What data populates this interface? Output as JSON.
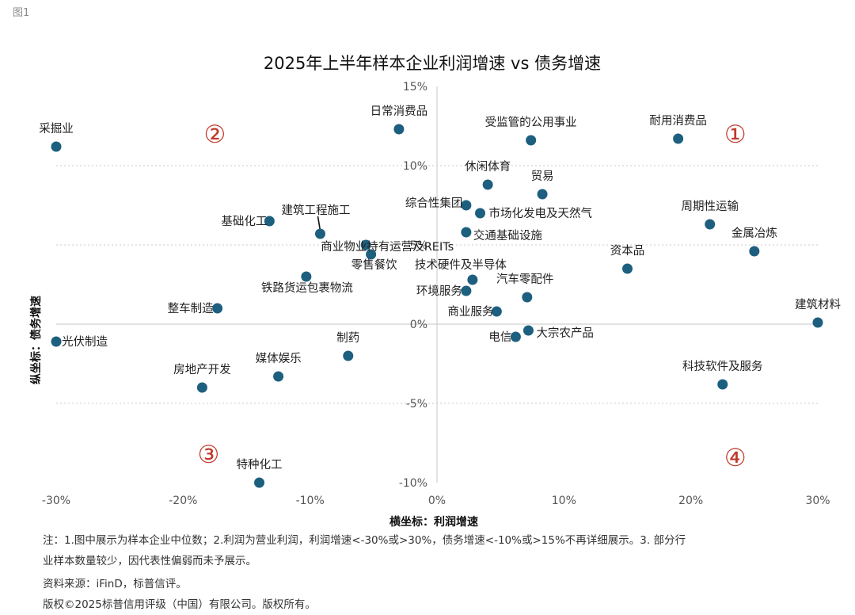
{
  "figure_label": "图1",
  "notes": {
    "line1": "注：1.图中展示为样本企业中位数；2.利润为营业利润，利润增速<-30%或>30%，债务增速<-10%或>15%不再详细展示。3. 部分行",
    "line2": "业样本数量较少，因代表性偏弱而未予展示。",
    "source": "资料来源：iFinD，标普信评。",
    "copyright": "版权©2025标普信用评级（中国）有限公司。版权所有。"
  },
  "chart_data": {
    "type": "scatter",
    "title": "2025年上半年样本企业利润增速 vs 债务增速",
    "xlabel": "横坐标：利润增速",
    "ylabel": "纵坐标：债务增速",
    "xlim": [
      -30,
      30
    ],
    "ylim": [
      -10,
      15
    ],
    "x_ticks": [
      "-30%",
      "-20%",
      "-10%",
      "0%",
      "10%",
      "20%",
      "30%"
    ],
    "y_ticks": [
      "15%",
      "10%",
      "5%",
      "0%",
      "-5%",
      "-10%"
    ],
    "marker_color": "#1d5f7f",
    "quadrant_color": "#c0392b",
    "quadrants": [
      {
        "label": "①",
        "x": 23.5,
        "y": 12
      },
      {
        "label": "②",
        "x": -17.5,
        "y": 12
      },
      {
        "label": "③",
        "x": -18,
        "y": -8.2
      },
      {
        "label": "④",
        "x": 23.5,
        "y": -8.4
      }
    ],
    "points": [
      {
        "label": "采掘业",
        "x": -30,
        "y": 11.2
      },
      {
        "label": "日常消费品",
        "x": -3,
        "y": 12.3
      },
      {
        "label": "受监管的公用事业",
        "x": 7.4,
        "y": 11.6
      },
      {
        "label": "耐用消费品",
        "x": 19,
        "y": 11.7
      },
      {
        "label": "休闲体育",
        "x": 4,
        "y": 8.8
      },
      {
        "label": "贸易",
        "x": 8.3,
        "y": 8.2
      },
      {
        "label": "综合性集团",
        "x": 2.3,
        "y": 7.5
      },
      {
        "label": "市场化发电及天然气",
        "x": 3.4,
        "y": 7
      },
      {
        "label": "建筑工程施工",
        "x": -9.2,
        "y": 5.7
      },
      {
        "label": "基础化工",
        "x": -13.2,
        "y": 6.5
      },
      {
        "label": "周期性运输",
        "x": 21.5,
        "y": 6.3
      },
      {
        "label": "商业物业持有运营及REITs",
        "x": -5.6,
        "y": 5
      },
      {
        "label": "交通基础设施",
        "x": 2.3,
        "y": 5.8
      },
      {
        "label": "金属冶炼",
        "x": 25,
        "y": 4.6
      },
      {
        "label": "零售餐饮",
        "x": -5.2,
        "y": 4.4
      },
      {
        "label": "资本品",
        "x": 15,
        "y": 3.5
      },
      {
        "label": "技术硬件及半导体",
        "x": 2.8,
        "y": 2.8
      },
      {
        "label": "铁路货运包裹物流",
        "x": -10.3,
        "y": 3
      },
      {
        "label": "汽车零配件",
        "x": 7.1,
        "y": 1.7
      },
      {
        "label": "环境服务",
        "x": 2.3,
        "y": 2.1
      },
      {
        "label": "整车制造",
        "x": -17.3,
        "y": 1
      },
      {
        "label": "商业服务",
        "x": 4.7,
        "y": 0.8
      },
      {
        "label": "建筑材料",
        "x": 30,
        "y": 0.1
      },
      {
        "label": "光伏制造",
        "x": -30,
        "y": -1.1
      },
      {
        "label": "大宗农产品",
        "x": 7.2,
        "y": -0.4
      },
      {
        "label": "电信",
        "x": 6.2,
        "y": -0.8
      },
      {
        "label": "制药",
        "x": -7,
        "y": -2
      },
      {
        "label": "媒体娱乐",
        "x": -12.5,
        "y": -3.3
      },
      {
        "label": "科技软件及服务",
        "x": 22.5,
        "y": -3.8
      },
      {
        "label": "房地产开发",
        "x": -18.5,
        "y": -4
      },
      {
        "label": "特种化工",
        "x": -14,
        "y": -10
      }
    ]
  }
}
